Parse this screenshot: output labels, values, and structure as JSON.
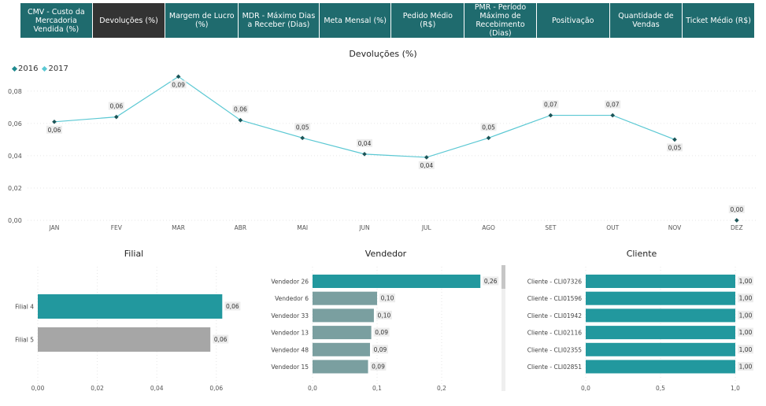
{
  "tabs": [
    {
      "label": "CMV - Custo da Mercadoria Vendida (%)",
      "active": false
    },
    {
      "label": "Devoluções (%)",
      "active": true
    },
    {
      "label": "Margem de Lucro (%)",
      "active": false
    },
    {
      "label": "MDR - Máximo Dias a Receber (Dias)",
      "active": false
    },
    {
      "label": "Meta Mensal (%)",
      "active": false
    },
    {
      "label": "Pedido Médio (R$)",
      "active": false
    },
    {
      "label": "PMR - Período Máximo de Recebimento (Dias)",
      "active": false
    },
    {
      "label": "Positivação",
      "active": false
    },
    {
      "label": "Quantidade de Vendas",
      "active": false
    },
    {
      "label": "Ticket Médio (R$)",
      "active": false
    }
  ],
  "colors": {
    "tab_bg": "#1f6b6e",
    "tab_active": "#333333",
    "line": "#5bc8d3",
    "teal_bar": "#22989e",
    "gray_bar": "#a6a6a6",
    "vend_bar": "#7a9fa0"
  },
  "chart_data": [
    {
      "type": "line",
      "title": "Devoluções (%)",
      "legend": [
        "2016",
        "2017"
      ],
      "legend_colors": [
        "#1f8a8f",
        "#5bc8d3"
      ],
      "categories": [
        "JAN",
        "FEV",
        "MAR",
        "ABR",
        "MAI",
        "JUN",
        "JUL",
        "AGO",
        "SET",
        "OUT",
        "NOV",
        "DEZ"
      ],
      "values": [
        0.061,
        0.064,
        0.089,
        0.062,
        0.051,
        0.041,
        0.039,
        0.051,
        0.065,
        0.065,
        0.05,
        0.0
      ],
      "value_labels": [
        "0,06",
        "0,06",
        "0,09",
        "0,06",
        "0,05",
        "0,04",
        "0,04",
        "0,05",
        "0,07",
        "0,07",
        "0,05",
        "0,00"
      ],
      "yticks": [
        "0,00",
        "0,02",
        "0,04",
        "0,06",
        "0,08"
      ],
      "ylim": [
        0,
        0.095
      ]
    },
    {
      "type": "bar",
      "orientation": "horizontal",
      "title": "Filial",
      "categories": [
        "Filial 4",
        "Filial 5"
      ],
      "values": [
        0.062,
        0.058
      ],
      "value_labels": [
        "0,06",
        "0,06"
      ],
      "bar_colors": [
        "#22989e",
        "#a6a6a6"
      ],
      "xticks": [
        "0,00",
        "0,02",
        "0,04",
        "0,06"
      ],
      "xlim": [
        0,
        0.068
      ]
    },
    {
      "type": "bar",
      "orientation": "horizontal",
      "title": "Vendedor",
      "categories": [
        "Vendedor 26",
        "Vendedor 6",
        "Vendedor 33",
        "Vendedor 13",
        "Vendedor 48",
        "Vendedor 15"
      ],
      "values": [
        0.26,
        0.1,
        0.095,
        0.091,
        0.089,
        0.086
      ],
      "value_labels": [
        "0,26",
        "0,10",
        "0,10",
        "0,09",
        "0,09",
        "0,09"
      ],
      "bar_colors": [
        "#22989e",
        "#7a9fa0",
        "#7a9fa0",
        "#7a9fa0",
        "#7a9fa0",
        "#7a9fa0"
      ],
      "xticks": [
        "0,0",
        "0,1",
        "0,2"
      ],
      "xlim": [
        0,
        0.3
      ]
    },
    {
      "type": "bar",
      "orientation": "horizontal",
      "title": "Cliente",
      "categories": [
        "Cliente - CLI07326",
        "Cliente - CLI01596",
        "Cliente - CLI01942",
        "Cliente - CLI02116",
        "Cliente - CLI02355",
        "Cliente - CLI02851"
      ],
      "values": [
        1,
        1,
        1,
        1,
        1,
        1
      ],
      "value_labels": [
        "1,00",
        "1,00",
        "1,00",
        "1,00",
        "1,00",
        "1,00"
      ],
      "bar_colors": [
        "#22989e",
        "#22989e",
        "#22989e",
        "#22989e",
        "#22989e",
        "#22989e"
      ],
      "xticks": [
        "0,0",
        "0,5",
        "1,0"
      ],
      "xlim": [
        0,
        1.1
      ]
    }
  ]
}
